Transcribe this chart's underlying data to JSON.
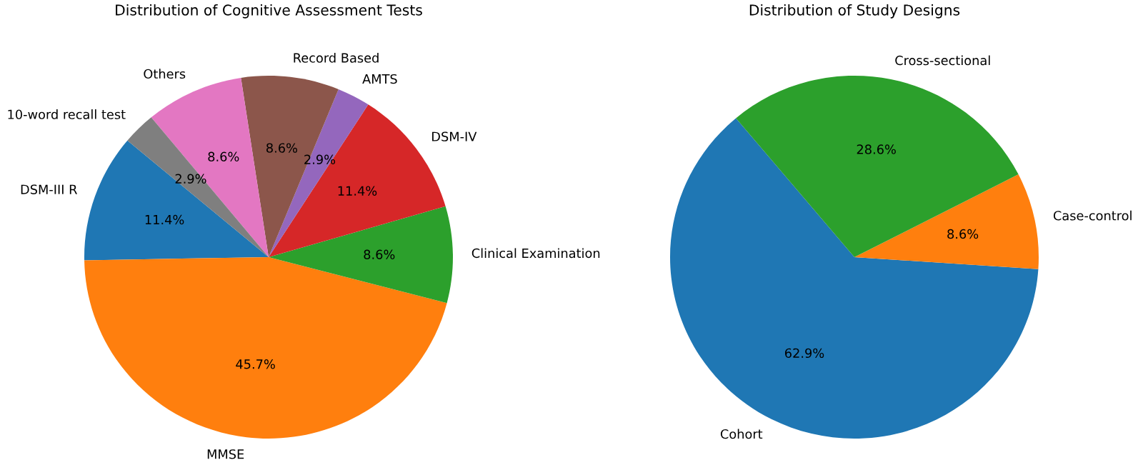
{
  "chart_data": [
    {
      "type": "pie",
      "title": "Distribution of Cognitive Assessment Tests",
      "categories": [
        "DSM-III R",
        "MMSE",
        "Clinical Examination",
        "DSM-IV",
        "AMTS",
        "Record Based",
        "Others",
        "10-word recall test"
      ],
      "values": [
        11.4,
        45.7,
        8.6,
        11.4,
        2.9,
        8.6,
        8.6,
        2.9
      ],
      "value_labels": [
        "11.4%",
        "45.7%",
        "8.6%",
        "11.4%",
        "2.9%",
        "8.6%",
        "8.6%",
        "2.9%"
      ],
      "colors": [
        "#1f77b4",
        "#ff7f0e",
        "#2ca02c",
        "#d62728",
        "#9467bd",
        "#8c564b",
        "#e377c2",
        "#7f7f7f"
      ]
    },
    {
      "type": "pie",
      "title": "Distribution of Study Designs",
      "categories": [
        "Cohort",
        "Case-control",
        "Cross-sectional"
      ],
      "values": [
        62.9,
        8.6,
        28.6
      ],
      "value_labels": [
        "62.9%",
        "8.6%",
        "28.6%"
      ],
      "colors": [
        "#1f77b4",
        "#ff7f0e",
        "#2ca02c"
      ]
    }
  ]
}
